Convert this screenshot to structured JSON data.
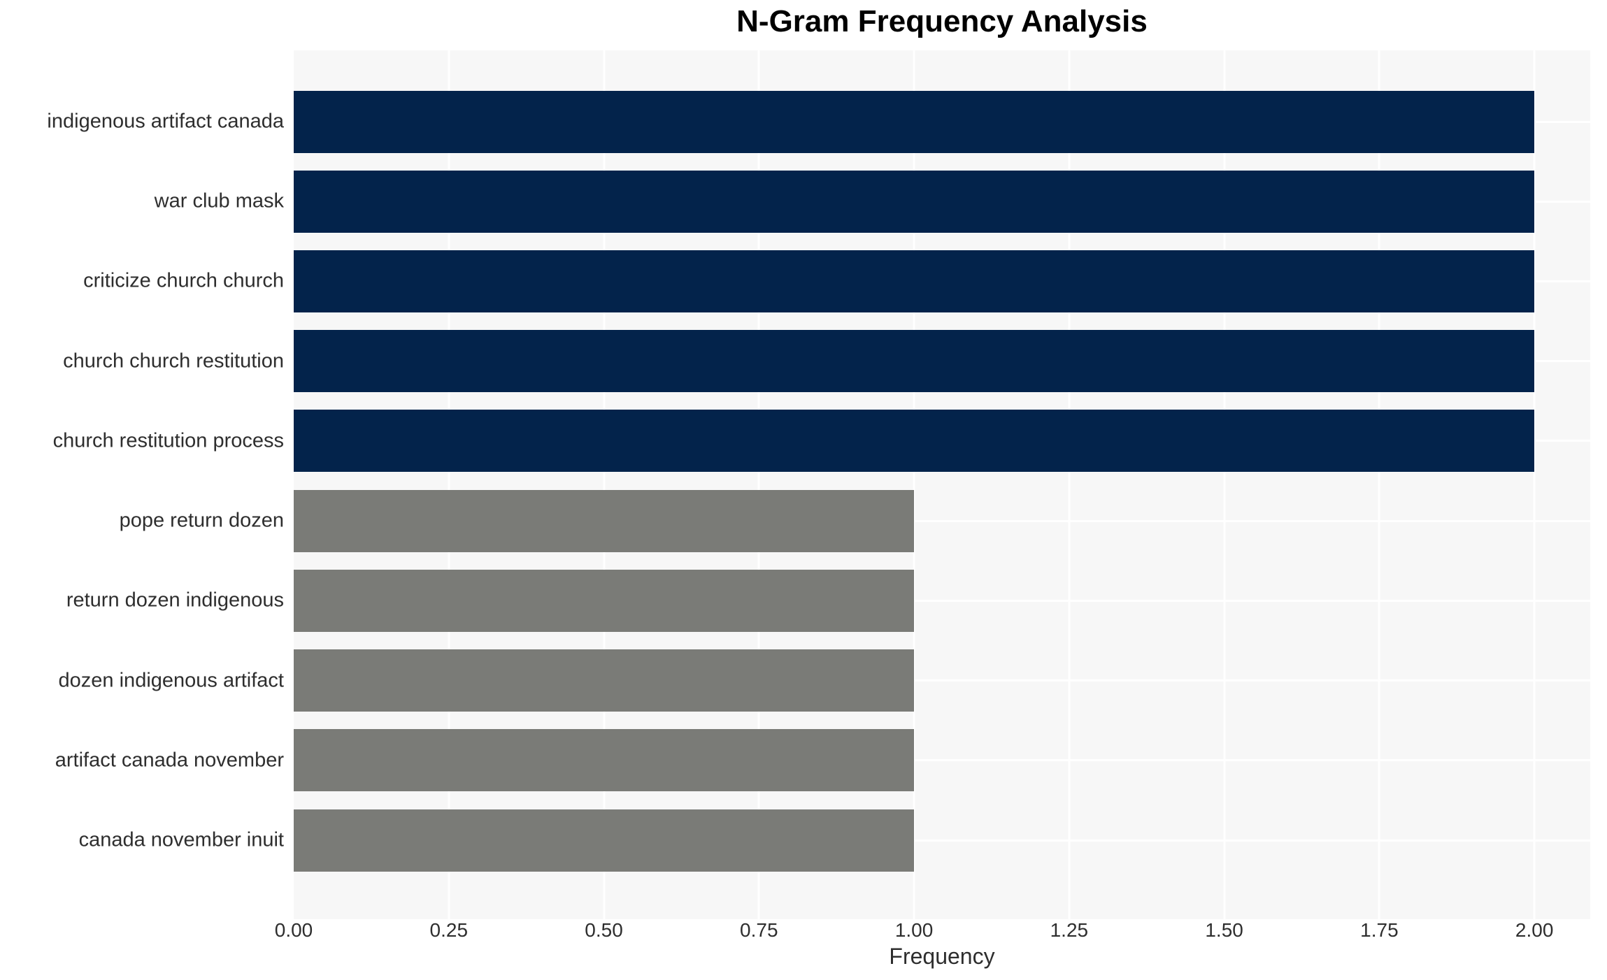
{
  "chart_data": {
    "type": "bar",
    "orientation": "horizontal",
    "title": "N-Gram Frequency Analysis",
    "xlabel": "Frequency",
    "ylabel": "",
    "categories": [
      "indigenous artifact canada",
      "war club mask",
      "criticize church church",
      "church church restitution",
      "church restitution process",
      "pope return dozen",
      "return dozen indigenous",
      "dozen indigenous artifact",
      "artifact canada november",
      "canada november inuit"
    ],
    "values": [
      2,
      2,
      2,
      2,
      2,
      1,
      1,
      1,
      1,
      1
    ],
    "bar_colors": [
      "#03234b",
      "#03234b",
      "#03234b",
      "#03234b",
      "#03234b",
      "#7a7b77",
      "#7a7b77",
      "#7a7b77",
      "#7a7b77",
      "#7a7b77"
    ],
    "xlim": [
      0,
      2.09
    ],
    "xticks": [
      0,
      0.25,
      0.5,
      0.75,
      1.0,
      1.25,
      1.5,
      1.75,
      2.0
    ],
    "xtick_labels": [
      "0.00",
      "0.25",
      "0.50",
      "0.75",
      "1.00",
      "1.25",
      "1.50",
      "1.75",
      "2.00"
    ],
    "grid": true,
    "legend": false,
    "colors": {
      "bar_primary": "#03234b",
      "bar_secondary": "#7a7b77",
      "plot_background": "#f7f7f7",
      "gridline": "#ffffff",
      "tick_text": "#2e2e2e",
      "title_text": "#000000"
    }
  }
}
